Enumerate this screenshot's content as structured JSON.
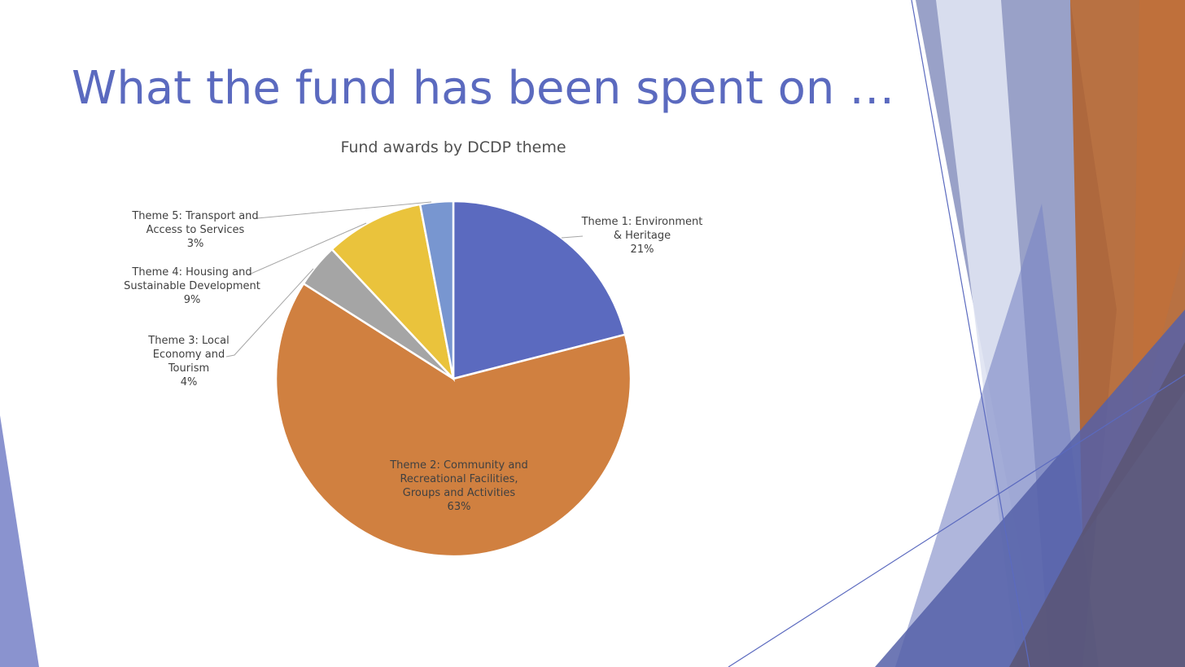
{
  "slide_title": "What the fund has been spent on …",
  "chart_data": {
    "type": "pie",
    "title": "Fund awards by DCDP theme",
    "categories": [
      "Theme 1: Environment & Heritage",
      "Theme 2: Community and Recreational Facilities, Groups and Activities",
      "Theme 3: Local Economy and Tourism",
      "Theme 4: Housing and Sustainable Development",
      "Theme 5: Transport and Access to Services"
    ],
    "values": [
      21,
      63,
      4,
      9,
      3
    ],
    "value_labels": [
      "21%",
      "63%",
      "4%",
      "9%",
      "3%"
    ],
    "colors": [
      "#5b6abf",
      "#d08040",
      "#a5a5a5",
      "#eac33c",
      "#7896d0"
    ]
  }
}
